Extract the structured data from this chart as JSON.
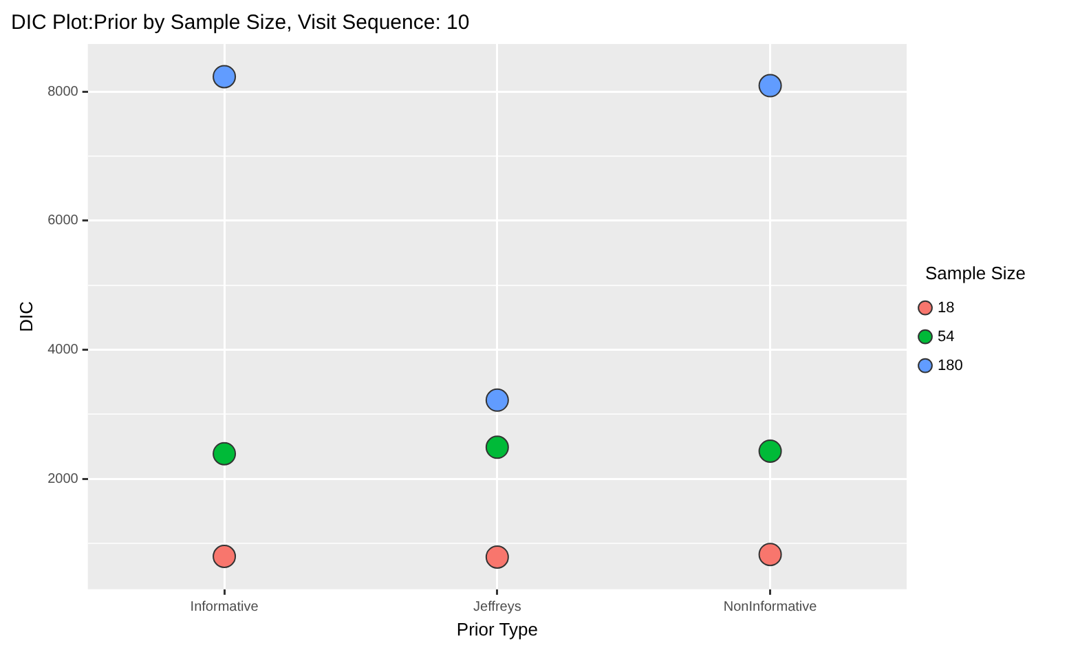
{
  "chart_data": {
    "type": "scatter",
    "title": "DIC Plot:Prior by Sample Size, Visit Sequence: 10",
    "xlabel": "Prior Type",
    "ylabel": "DIC",
    "legend_title": "Sample Size",
    "legend": "right",
    "grid": true,
    "marker": "circle",
    "categories": [
      "Informative",
      "Jeffreys",
      "NonInformative"
    ],
    "ylim": [
      291,
      8735
    ],
    "yticks": [
      {
        "value": 1000,
        "label": null
      },
      2000,
      {
        "value": 3000,
        "label": null
      },
      4000,
      {
        "value": 5000,
        "label": null
      },
      6000,
      {
        "value": 7000,
        "label": null
      },
      8000
    ],
    "series": [
      {
        "name": "18",
        "color": "#f8766d",
        "values": [
          800,
          790,
          830
        ]
      },
      {
        "name": "54",
        "color": "#00ba38",
        "values": [
          2390,
          2490,
          2430
        ]
      },
      {
        "name": "180",
        "color": "#619cff",
        "values": [
          8230,
          3220,
          8090
        ]
      }
    ]
  }
}
